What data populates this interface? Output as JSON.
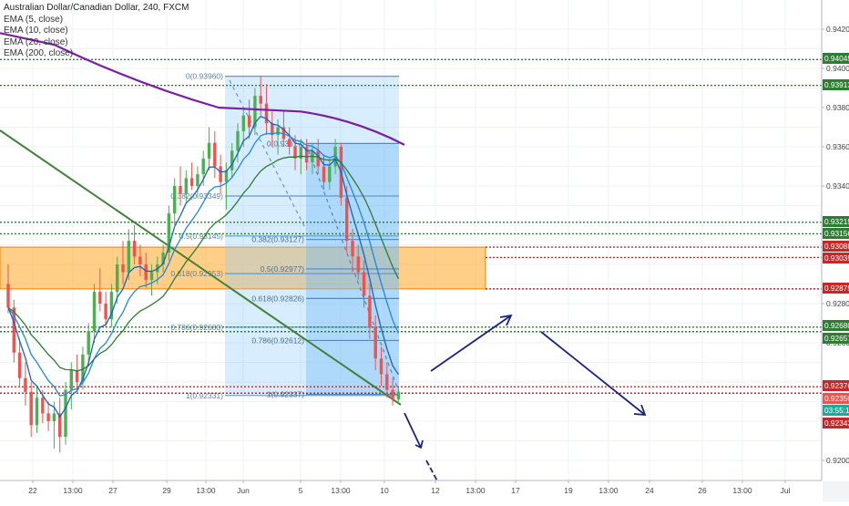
{
  "chart_data": {
    "type": "candlestick",
    "title": "Australian Dollar/Canadian Dollar, 240, FXCM",
    "indicators": [
      {
        "name": "EMA (5, close)",
        "color": "#1565c0"
      },
      {
        "name": "EMA (10, close)",
        "color": "#1e88e5"
      },
      {
        "name": "EMA (20, close)",
        "color": "#2e7d32"
      },
      {
        "name": "EMA (200, close)",
        "color": "#7b1fa2"
      }
    ],
    "ylim": [
      0.9195,
      0.943
    ],
    "y_ticks": [
      "0.94200",
      "0.94000",
      "0.93800",
      "0.93600",
      "0.93400",
      "0.92800",
      "0.92600",
      "0.92000"
    ],
    "x_ticks": [
      "22",
      "13:00",
      "27",
      "29",
      "13:00",
      "Jun",
      "5",
      "13:00",
      "10",
      "12",
      "13:00",
      "17",
      "19",
      "13:00",
      "24",
      "26",
      "13:00",
      "Jul"
    ],
    "price_labels": [
      {
        "value": 0.94045,
        "text": "0.94045",
        "color": "#2e7d32"
      },
      {
        "value": 0.93913,
        "text": "0.93913",
        "color": "#2e7d32"
      },
      {
        "value": 0.93215,
        "text": "0.93215",
        "color": "#2e7d32"
      },
      {
        "value": 0.93156,
        "text": "0.93156",
        "color": "#2e7d32"
      },
      {
        "value": 0.93088,
        "text": "0.93088",
        "color": "#c62828"
      },
      {
        "value": 0.93035,
        "text": "0.93035",
        "color": "#c62828"
      },
      {
        "value": 0.92875,
        "text": "0.92875",
        "color": "#c62828"
      },
      {
        "value": 0.9268,
        "text": "0.92680",
        "color": "#2e7d32"
      },
      {
        "value": 0.92657,
        "text": "0.92657",
        "color": "#2e7d32"
      },
      {
        "value": 0.92376,
        "text": "0.92376",
        "color": "#c62828"
      },
      {
        "value": 0.9235,
        "text": "0.92350",
        "color": "#ef5350"
      },
      {
        "value": 0.92312,
        "text": "03:55:13",
        "color": "#26a69a"
      },
      {
        "value": 0.92343,
        "text": "0.92343",
        "color": "#c62828"
      }
    ],
    "levels": [
      {
        "value": 0.94045,
        "color": "#2e7d32"
      },
      {
        "value": 0.93913,
        "color": "#2e7d32"
      },
      {
        "value": 0.93215,
        "color": "#2e7d32"
      },
      {
        "value": 0.93156,
        "color": "#2e7d32"
      },
      {
        "value": 0.93088,
        "color": "#c62828"
      },
      {
        "value": 0.93035,
        "color": "#c62828"
      },
      {
        "value": 0.92875,
        "color": "#c62828"
      },
      {
        "value": 0.9268,
        "color": "#2e7d32"
      },
      {
        "value": 0.92657,
        "color": "#2e7d32"
      },
      {
        "value": 0.92376,
        "color": "#c62828"
      },
      {
        "value": 0.92343,
        "color": "#c62828"
      }
    ],
    "zone": {
      "from": 0.92875,
      "to": 0.93088
    },
    "fib_primary": {
      "labels": [
        {
          "text": "0(0.93960)",
          "value": 0.9396
        },
        {
          "text": "0.382(0.93349)",
          "value": 0.93349
        },
        {
          "text": "0.5(0.93145)",
          "value": 0.93145
        },
        {
          "text": "0.618(0.92953)",
          "value": 0.92953
        },
        {
          "text": "0.786(0.92680)",
          "value": 0.9268
        },
        {
          "text": "1(0.92331)",
          "value": 0.92331
        }
      ]
    },
    "fib_secondary": {
      "labels": [
        {
          "text": "0(0.93617)",
          "value": 0.93617
        },
        {
          "text": "0.382(0.93127)",
          "value": 0.93127
        },
        {
          "text": "0.5(0.92977)",
          "value": 0.92977
        },
        {
          "text": "0.618(0.92826)",
          "value": 0.92826
        },
        {
          "text": "0.786(0.92612)",
          "value": 0.92612
        },
        {
          "text": "1(0.92337)",
          "value": 0.92337
        }
      ]
    },
    "candles": [
      [
        0.929,
        0.93,
        0.9275,
        0.9278
      ],
      [
        0.9278,
        0.9282,
        0.925,
        0.9255
      ],
      [
        0.9255,
        0.9262,
        0.9238,
        0.9242
      ],
      [
        0.9242,
        0.925,
        0.9228,
        0.9235
      ],
      [
        0.9235,
        0.924,
        0.9212,
        0.9218
      ],
      [
        0.9218,
        0.9238,
        0.9214,
        0.9232
      ],
      [
        0.9232,
        0.9236,
        0.9219,
        0.9224
      ],
      [
        0.9224,
        0.923,
        0.9215,
        0.922
      ],
      [
        0.922,
        0.923,
        0.9206,
        0.9224
      ],
      [
        0.9224,
        0.9232,
        0.9204,
        0.9212
      ],
      [
        0.9212,
        0.924,
        0.9208,
        0.9236
      ],
      [
        0.9236,
        0.925,
        0.9226,
        0.9246
      ],
      [
        0.9246,
        0.9254,
        0.9236,
        0.924
      ],
      [
        0.924,
        0.9258,
        0.9236,
        0.9254
      ],
      [
        0.9254,
        0.927,
        0.9248,
        0.9266
      ],
      [
        0.9266,
        0.929,
        0.926,
        0.9286
      ],
      [
        0.9286,
        0.9298,
        0.9276,
        0.928
      ],
      [
        0.928,
        0.9286,
        0.9268,
        0.9272
      ],
      [
        0.9272,
        0.929,
        0.9268,
        0.9286
      ],
      [
        0.9286,
        0.9304,
        0.928,
        0.93
      ],
      [
        0.93,
        0.9312,
        0.929,
        0.9296
      ],
      [
        0.9296,
        0.9318,
        0.9292,
        0.9312
      ],
      [
        0.9312,
        0.932,
        0.93,
        0.9304
      ],
      [
        0.9304,
        0.931,
        0.9294,
        0.93
      ],
      [
        0.93,
        0.9306,
        0.9288,
        0.9292
      ],
      [
        0.9292,
        0.93,
        0.9284,
        0.9296
      ],
      [
        0.9296,
        0.9304,
        0.929,
        0.93
      ],
      [
        0.93,
        0.931,
        0.9296,
        0.9306
      ],
      [
        0.9306,
        0.933,
        0.9302,
        0.9326
      ],
      [
        0.9326,
        0.9344,
        0.932,
        0.934
      ],
      [
        0.934,
        0.935,
        0.933,
        0.9336
      ],
      [
        0.9336,
        0.9348,
        0.9332,
        0.9344
      ],
      [
        0.9344,
        0.9352,
        0.9338,
        0.934
      ],
      [
        0.934,
        0.935,
        0.9334,
        0.9346
      ],
      [
        0.9346,
        0.9358,
        0.934,
        0.9354
      ],
      [
        0.9354,
        0.937,
        0.9348,
        0.9362
      ],
      [
        0.9362,
        0.9368,
        0.9344,
        0.935
      ],
      [
        0.935,
        0.9356,
        0.9336,
        0.9342
      ],
      [
        0.9342,
        0.9352,
        0.9328,
        0.9348
      ],
      [
        0.9348,
        0.9362,
        0.9344,
        0.9358
      ],
      [
        0.9358,
        0.9372,
        0.9352,
        0.9368
      ],
      [
        0.9368,
        0.938,
        0.936,
        0.9376
      ],
      [
        0.9376,
        0.9384,
        0.9364,
        0.937
      ],
      [
        0.937,
        0.939,
        0.9366,
        0.9386
      ],
      [
        0.9386,
        0.9396,
        0.9376,
        0.9382
      ],
      [
        0.9382,
        0.9392,
        0.9366,
        0.9372
      ],
      [
        0.9372,
        0.9378,
        0.936,
        0.9366
      ],
      [
        0.9366,
        0.9374,
        0.9356,
        0.937
      ],
      [
        0.937,
        0.9378,
        0.936,
        0.9364
      ],
      [
        0.9364,
        0.937,
        0.9356,
        0.936
      ],
      [
        0.936,
        0.9366,
        0.9348,
        0.9354
      ],
      [
        0.9354,
        0.9364,
        0.9346,
        0.936
      ],
      [
        0.936,
        0.9364,
        0.9348,
        0.9352
      ],
      [
        0.9352,
        0.9362,
        0.9346,
        0.9358
      ],
      [
        0.9358,
        0.9364,
        0.9346,
        0.935
      ],
      [
        0.935,
        0.9356,
        0.9338,
        0.9342
      ],
      [
        0.9342,
        0.9354,
        0.9338,
        0.935
      ],
      [
        0.935,
        0.9364,
        0.9346,
        0.936
      ],
      [
        0.936,
        0.9362,
        0.933,
        0.9334
      ],
      [
        0.9334,
        0.934,
        0.9306,
        0.9312
      ],
      [
        0.9312,
        0.9318,
        0.9296,
        0.9304
      ],
      [
        0.9304,
        0.931,
        0.9292,
        0.9296
      ],
      [
        0.9296,
        0.9302,
        0.9278,
        0.9284
      ],
      [
        0.9284,
        0.929,
        0.9262,
        0.9268
      ],
      [
        0.9268,
        0.9274,
        0.9246,
        0.9252
      ],
      [
        0.9252,
        0.9258,
        0.9238,
        0.9244
      ],
      [
        0.9244,
        0.925,
        0.9232,
        0.9236
      ],
      [
        0.9236,
        0.9242,
        0.9228,
        0.9231
      ],
      [
        0.9231,
        0.9237,
        0.9229,
        0.9235
      ]
    ]
  }
}
